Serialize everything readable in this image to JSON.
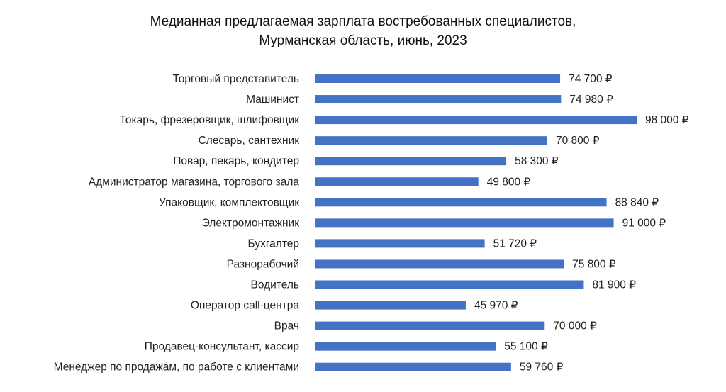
{
  "chart_data": {
    "type": "bar",
    "orientation": "horizontal",
    "title": [
      "Медианная предлагаемая зарплата востребованных специалистов,",
      "Мурманская область, июнь, 2023"
    ],
    "categories": [
      "Торговый представитель",
      "Машинист",
      "Токарь, фрезеровщик, шлифовщик",
      "Слесарь, сантехник",
      "Повар, пекарь, кондитер",
      "Администратор магазина, торгового зала",
      "Упаковщик, комплектовщик",
      "Электромонтажник",
      "Бухгалтер",
      "Разнорабочий",
      "Водитель",
      "Оператор call-центра",
      "Врач",
      "Продавец-консультант, кассир",
      "Менеджер по продажам, по работе с клиентами"
    ],
    "values": [
      74700,
      74980,
      98000,
      70800,
      58300,
      49800,
      88840,
      91000,
      51720,
      75800,
      81900,
      45970,
      70000,
      55100,
      59760
    ],
    "value_labels": [
      "74 700 ₽",
      "74 980 ₽",
      "98 000 ₽",
      "70 800 ₽",
      "58 300 ₽",
      "49 800 ₽",
      "88 840 ₽",
      "91 000 ₽",
      "51 720 ₽",
      "75 800 ₽",
      "81 900 ₽",
      "45 970 ₽",
      "70 000 ₽",
      "55 100 ₽",
      "59 760 ₽"
    ],
    "xlim": [
      0,
      98000
    ],
    "grid": false,
    "legend": "none",
    "bar_color": "#4472C4"
  }
}
